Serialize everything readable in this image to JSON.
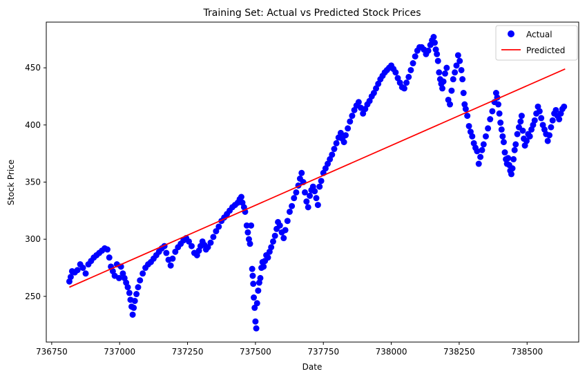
{
  "chart_data": {
    "type": "scatter",
    "title": "Training Set: Actual vs Predicted Stock Prices",
    "xlabel": "Date",
    "ylabel": "Stock Price",
    "xlim": [
      736730,
      738690
    ],
    "ylim": [
      210,
      490
    ],
    "x_ticks": [
      736750,
      737000,
      737250,
      737500,
      737750,
      738000,
      738250,
      738500
    ],
    "y_ticks": [
      250,
      300,
      350,
      400,
      450
    ],
    "legend": {
      "position": "top-right",
      "entries": [
        "Actual",
        "Predicted"
      ]
    },
    "colors": {
      "actual": "#0000ff",
      "predicted": "#ff0000"
    },
    "series": [
      {
        "name": "Actual",
        "type": "scatter",
        "points": [
          [
            736815,
            263
          ],
          [
            736820,
            267
          ],
          [
            736825,
            272
          ],
          [
            736835,
            271
          ],
          [
            736845,
            273
          ],
          [
            736855,
            278
          ],
          [
            736865,
            275
          ],
          [
            736875,
            270
          ],
          [
            736885,
            278
          ],
          [
            736895,
            281
          ],
          [
            736905,
            284
          ],
          [
            736915,
            286
          ],
          [
            736925,
            288
          ],
          [
            736935,
            290
          ],
          [
            736945,
            292
          ],
          [
            736955,
            291
          ],
          [
            736962,
            284
          ],
          [
            736968,
            276
          ],
          [
            736975,
            272
          ],
          [
            736982,
            268
          ],
          [
            736990,
            278
          ],
          [
            736998,
            266
          ],
          [
            737005,
            276
          ],
          [
            737012,
            270
          ],
          [
            737018,
            266
          ],
          [
            737024,
            262
          ],
          [
            737030,
            258
          ],
          [
            737036,
            253
          ],
          [
            737040,
            247
          ],
          [
            737044,
            241
          ],
          [
            737048,
            234
          ],
          [
            737052,
            240
          ],
          [
            737056,
            246
          ],
          [
            737062,
            252
          ],
          [
            737068,
            258
          ],
          [
            737075,
            264
          ],
          [
            737085,
            270
          ],
          [
            737095,
            275
          ],
          [
            737105,
            278
          ],
          [
            737115,
            280
          ],
          [
            737125,
            283
          ],
          [
            737135,
            286
          ],
          [
            737145,
            289
          ],
          [
            737155,
            292
          ],
          [
            737165,
            294
          ],
          [
            737172,
            288
          ],
          [
            737180,
            282
          ],
          [
            737188,
            277
          ],
          [
            737195,
            283
          ],
          [
            737205,
            289
          ],
          [
            737215,
            293
          ],
          [
            737225,
            296
          ],
          [
            737235,
            299
          ],
          [
            737245,
            301
          ],
          [
            737255,
            298
          ],
          [
            737265,
            294
          ],
          [
            737275,
            288
          ],
          [
            737285,
            286
          ],
          [
            737292,
            290
          ],
          [
            737298,
            294
          ],
          [
            737305,
            298
          ],
          [
            737312,
            295
          ],
          [
            737318,
            291
          ],
          [
            737325,
            293
          ],
          [
            737335,
            297
          ],
          [
            737345,
            302
          ],
          [
            737355,
            307
          ],
          [
            737365,
            311
          ],
          [
            737375,
            316
          ],
          [
            737385,
            319
          ],
          [
            737395,
            322
          ],
          [
            737405,
            325
          ],
          [
            737415,
            328
          ],
          [
            737425,
            330
          ],
          [
            737435,
            332
          ],
          [
            737442,
            335
          ],
          [
            737448,
            337
          ],
          [
            737452,
            332
          ],
          [
            737458,
            328
          ],
          [
            737462,
            324
          ],
          [
            737468,
            312
          ],
          [
            737472,
            306
          ],
          [
            737476,
            300
          ],
          [
            737480,
            296
          ],
          [
            737484,
            312
          ],
          [
            737488,
            274
          ],
          [
            737490,
            268
          ],
          [
            737492,
            261
          ],
          [
            737494,
            249
          ],
          [
            737497,
            240
          ],
          [
            737500,
            228
          ],
          [
            737503,
            222
          ],
          [
            737506,
            244
          ],
          [
            737510,
            255
          ],
          [
            737514,
            262
          ],
          [
            737518,
            266
          ],
          [
            737522,
            275
          ],
          [
            737526,
            280
          ],
          [
            737530,
            276
          ],
          [
            737535,
            281
          ],
          [
            737540,
            286
          ],
          [
            737546,
            284
          ],
          [
            737552,
            289
          ],
          [
            737558,
            293
          ],
          [
            737565,
            298
          ],
          [
            737572,
            303
          ],
          [
            737578,
            309
          ],
          [
            737583,
            315
          ],
          [
            737590,
            312
          ],
          [
            737597,
            306
          ],
          [
            737604,
            301
          ],
          [
            737610,
            308
          ],
          [
            737618,
            316
          ],
          [
            737626,
            324
          ],
          [
            737634,
            329
          ],
          [
            737642,
            336
          ],
          [
            737650,
            341
          ],
          [
            737658,
            347
          ],
          [
            737664,
            353
          ],
          [
            737670,
            358
          ],
          [
            737676,
            350
          ],
          [
            737682,
            341
          ],
          [
            737688,
            333
          ],
          [
            737694,
            328
          ],
          [
            737700,
            338
          ],
          [
            737706,
            343
          ],
          [
            737712,
            346
          ],
          [
            737718,
            342
          ],
          [
            737724,
            336
          ],
          [
            737730,
            330
          ],
          [
            737736,
            346
          ],
          [
            737742,
            351
          ],
          [
            737750,
            358
          ],
          [
            737758,
            362
          ],
          [
            737766,
            366
          ],
          [
            737774,
            370
          ],
          [
            737782,
            374
          ],
          [
            737790,
            379
          ],
          [
            737798,
            384
          ],
          [
            737806,
            389
          ],
          [
            737814,
            393
          ],
          [
            737820,
            388
          ],
          [
            737826,
            385
          ],
          [
            737832,
            391
          ],
          [
            737840,
            397
          ],
          [
            737848,
            403
          ],
          [
            737856,
            408
          ],
          [
            737864,
            413
          ],
          [
            737872,
            417
          ],
          [
            737880,
            420
          ],
          [
            737888,
            415
          ],
          [
            737896,
            410
          ],
          [
            737904,
            414
          ],
          [
            737912,
            418
          ],
          [
            737920,
            421
          ],
          [
            737928,
            425
          ],
          [
            737936,
            428
          ],
          [
            737944,
            432
          ],
          [
            737952,
            436
          ],
          [
            737960,
            440
          ],
          [
            737968,
            443
          ],
          [
            737976,
            446
          ],
          [
            737984,
            448
          ],
          [
            737992,
            450
          ],
          [
            738000,
            452
          ],
          [
            738008,
            449
          ],
          [
            738016,
            446
          ],
          [
            738024,
            441
          ],
          [
            738032,
            437
          ],
          [
            738040,
            433
          ],
          [
            738048,
            432
          ],
          [
            738056,
            437
          ],
          [
            738064,
            442
          ],
          [
            738072,
            448
          ],
          [
            738080,
            454
          ],
          [
            738088,
            460
          ],
          [
            738096,
            465
          ],
          [
            738104,
            468
          ],
          [
            738112,
            468
          ],
          [
            738120,
            466
          ],
          [
            738128,
            462
          ],
          [
            738136,
            465
          ],
          [
            738144,
            470
          ],
          [
            738150,
            474
          ],
          [
            738156,
            477
          ],
          [
            738160,
            472
          ],
          [
            738164,
            466
          ],
          [
            738168,
            462
          ],
          [
            738172,
            456
          ],
          [
            738176,
            446
          ],
          [
            738180,
            440
          ],
          [
            738184,
            436
          ],
          [
            738188,
            432
          ],
          [
            738192,
            438
          ],
          [
            738198,
            445
          ],
          [
            738204,
            450
          ],
          [
            738210,
            422
          ],
          [
            738216,
            418
          ],
          [
            738222,
            430
          ],
          [
            738228,
            440
          ],
          [
            738234,
            446
          ],
          [
            738240,
            452
          ],
          [
            738246,
            461
          ],
          [
            738252,
            456
          ],
          [
            738258,
            448
          ],
          [
            738262,
            440
          ],
          [
            738266,
            428
          ],
          [
            738270,
            418
          ],
          [
            738274,
            414
          ],
          [
            738280,
            408
          ],
          [
            738286,
            399
          ],
          [
            738292,
            394
          ],
          [
            738298,
            390
          ],
          [
            738304,
            384
          ],
          [
            738310,
            380
          ],
          [
            738316,
            377
          ],
          [
            738322,
            366
          ],
          [
            738328,
            372
          ],
          [
            738334,
            378
          ],
          [
            738340,
            383
          ],
          [
            738348,
            390
          ],
          [
            738356,
            397
          ],
          [
            738364,
            405
          ],
          [
            738372,
            412
          ],
          [
            738380,
            420
          ],
          [
            738386,
            428
          ],
          [
            738390,
            424
          ],
          [
            738394,
            418
          ],
          [
            738398,
            410
          ],
          [
            738402,
            402
          ],
          [
            738406,
            396
          ],
          [
            738410,
            390
          ],
          [
            738414,
            385
          ],
          [
            738418,
            376
          ],
          [
            738422,
            370
          ],
          [
            738426,
            366
          ],
          [
            738430,
            371
          ],
          [
            738434,
            365
          ],
          [
            738438,
            360
          ],
          [
            738442,
            357
          ],
          [
            738446,
            362
          ],
          [
            738450,
            370
          ],
          [
            738454,
            378
          ],
          [
            738458,
            383
          ],
          [
            738464,
            392
          ],
          [
            738470,
            398
          ],
          [
            738476,
            403
          ],
          [
            738480,
            408
          ],
          [
            738484,
            395
          ],
          [
            738488,
            388
          ],
          [
            738492,
            382
          ],
          [
            738498,
            386
          ],
          [
            738504,
            392
          ],
          [
            738510,
            390
          ],
          [
            738516,
            396
          ],
          [
            738522,
            400
          ],
          [
            738528,
            404
          ],
          [
            738534,
            410
          ],
          [
            738540,
            416
          ],
          [
            738546,
            412
          ],
          [
            738552,
            406
          ],
          [
            738558,
            400
          ],
          [
            738564,
            396
          ],
          [
            738570,
            392
          ],
          [
            738576,
            386
          ],
          [
            738582,
            391
          ],
          [
            738588,
            398
          ],
          [
            738594,
            404
          ],
          [
            738600,
            410
          ],
          [
            738606,
            413
          ],
          [
            738612,
            408
          ],
          [
            738618,
            405
          ],
          [
            738624,
            410
          ],
          [
            738630,
            414
          ],
          [
            738636,
            416
          ]
        ]
      },
      {
        "name": "Predicted",
        "type": "line",
        "points": [
          [
            736815,
            258
          ],
          [
            738640,
            449
          ]
        ]
      }
    ]
  }
}
